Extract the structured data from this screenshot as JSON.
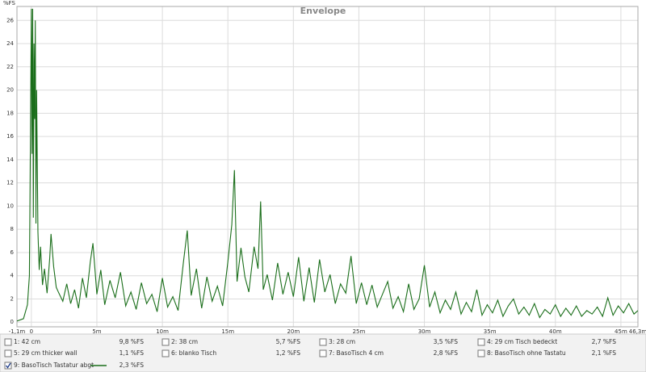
{
  "chart_data": {
    "type": "line",
    "title": "Envelope",
    "y_unit": "%FS",
    "xlim": [
      -1.1,
      46.3
    ],
    "ylim": [
      -0.4,
      27.2
    ],
    "xticks": [
      {
        "value": -1.1,
        "label": "-1,1m"
      },
      0,
      {
        "value": 5,
        "label": "5m"
      },
      {
        "value": 10,
        "label": "10m"
      },
      {
        "value": 15,
        "label": "15m"
      },
      {
        "value": 20,
        "label": "20m"
      },
      {
        "value": 25,
        "label": "25m"
      },
      {
        "value": 30,
        "label": "30m"
      },
      {
        "value": 35,
        "label": "35m"
      },
      {
        "value": 40,
        "label": "40m"
      },
      {
        "value": 45,
        "label": "45m"
      },
      {
        "value": 46.3,
        "label": "46,3m"
      }
    ],
    "yticks": [
      0,
      2,
      4,
      6,
      8,
      10,
      12,
      14,
      16,
      18,
      20,
      22,
      24,
      26
    ],
    "grid": true,
    "x": [
      -1.1,
      -0.6,
      -0.3,
      -0.15,
      0,
      0.05,
      0.1,
      0.15,
      0.2,
      0.25,
      0.3,
      0.35,
      0.4,
      0.5,
      0.6,
      0.7,
      0.85,
      1,
      1.2,
      1.4,
      1.5,
      1.7,
      1.9,
      2.1,
      2.4,
      2.7,
      3,
      3.3,
      3.6,
      3.9,
      4.2,
      4.5,
      4.7,
      5,
      5.3,
      5.6,
      6,
      6.4,
      6.8,
      7.2,
      7.6,
      8,
      8.4,
      8.8,
      9.2,
      9.6,
      10,
      10.4,
      10.8,
      11.2,
      11.6,
      11.9,
      12.2,
      12.6,
      13,
      13.4,
      13.8,
      14.2,
      14.6,
      15,
      15.3,
      15.5,
      15.7,
      16,
      16.3,
      16.6,
      17,
      17.3,
      17.5,
      17.7,
      18,
      18.4,
      18.8,
      19.2,
      19.6,
      20,
      20.4,
      20.8,
      21.2,
      21.6,
      22,
      22.4,
      22.8,
      23.2,
      23.6,
      24,
      24.4,
      24.8,
      25.2,
      25.6,
      26,
      26.4,
      26.8,
      27.2,
      27.6,
      28,
      28.4,
      28.8,
      29.2,
      29.6,
      30,
      30.4,
      30.8,
      31.2,
      31.6,
      32,
      32.4,
      32.8,
      33.2,
      33.6,
      34,
      34.4,
      34.8,
      35.2,
      35.6,
      36,
      36.4,
      36.8,
      37.2,
      37.6,
      38,
      38.4,
      38.8,
      39.2,
      39.6,
      40,
      40.4,
      40.8,
      41.2,
      41.6,
      42,
      42.4,
      42.8,
      43.2,
      43.6,
      44,
      44.4,
      44.8,
      45.2,
      45.6,
      46,
      46.3
    ],
    "series": [
      {
        "name": "1: 42 cm",
        "color": "#5a5a5a",
        "reading": "9,8 %FS",
        "checked": false
      },
      {
        "name": "2: 38 cm",
        "color": "#4ccc4c",
        "reading": "5,7 %FS",
        "checked": false
      },
      {
        "name": "3: 28 cm",
        "color": "#d4bf1c",
        "reading": "3,5 %FS",
        "checked": false
      },
      {
        "name": "4: 29 cm Tisch bedeckt",
        "color": "#d07800",
        "reading": "2,7 %FS",
        "checked": false
      },
      {
        "name": "5: 29 cm thicker wall",
        "color": "#3c5a00",
        "reading": "1,1 %FS",
        "checked": false
      },
      {
        "name": "6: blanko Tisch",
        "color": "#b00000",
        "reading": "1,2 %FS",
        "checked": false
      },
      {
        "name": "7: BasoTisch 4 cm",
        "color": "#c03a00",
        "reading": "2,8 %FS",
        "checked": false
      },
      {
        "name": "8: BasoTisch ohne Tastatu",
        "color": "#a89020",
        "reading": "2,1 %FS",
        "checked": false
      },
      {
        "name": "9: BasoTisch Tastatur abgt",
        "color": "#1a6e1a",
        "reading": "2,3 %FS",
        "checked": true,
        "values": [
          0.1,
          0.3,
          1.5,
          4,
          27,
          14.5,
          27,
          9,
          24,
          17.5,
          26,
          8.5,
          20,
          7.8,
          4.5,
          6.5,
          3.2,
          4.6,
          2.5,
          5.5,
          7.6,
          4.8,
          3,
          2.5,
          1.8,
          3.3,
          1.6,
          2.8,
          1.2,
          3.8,
          2.1,
          5.2,
          6.8,
          2.4,
          4.5,
          1.5,
          3.6,
          2.1,
          4.3,
          1.4,
          2.6,
          1.1,
          3.4,
          1.6,
          2.4,
          0.9,
          3.8,
          1.3,
          2.2,
          1.0,
          5.1,
          7.9,
          2.3,
          4.6,
          1.2,
          3.9,
          1.8,
          3.1,
          1.4,
          5.2,
          8.4,
          13.1,
          3.5,
          6.4,
          3.9,
          2.6,
          6.5,
          4.6,
          10.4,
          2.8,
          4.1,
          1.9,
          5.1,
          2.4,
          4.3,
          2.2,
          5.6,
          1.8,
          4.7,
          1.7,
          5.4,
          2.6,
          4.1,
          1.6,
          3.3,
          2.5,
          5.7,
          1.6,
          3.4,
          1.5,
          3.2,
          1.3,
          2.4,
          3.5,
          1.2,
          2.2,
          0.9,
          3.3,
          1.1,
          2.0,
          4.9,
          1.3,
          2.6,
          0.8,
          1.9,
          1.1,
          2.6,
          0.7,
          1.7,
          0.9,
          2.8,
          0.6,
          1.5,
          0.8,
          1.9,
          0.5,
          1.4,
          2.0,
          0.7,
          1.3,
          0.6,
          1.6,
          0.4,
          1.1,
          0.7,
          1.5,
          0.5,
          1.2,
          0.6,
          1.4,
          0.5,
          1.0,
          0.7,
          1.3,
          0.5,
          2.1,
          0.6,
          1.4,
          0.8,
          1.6,
          0.7,
          1.0
        ]
      }
    ]
  }
}
